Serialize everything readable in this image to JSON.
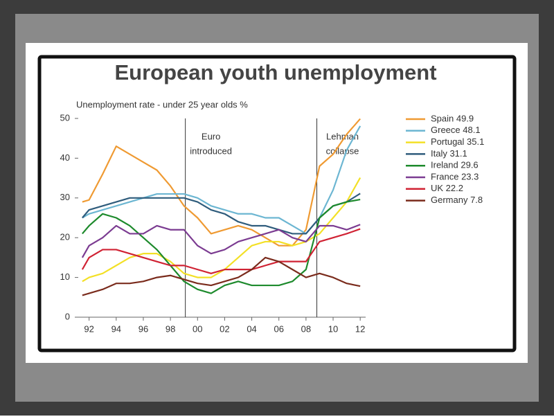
{
  "chart_data": {
    "type": "line",
    "title": "European youth unemployment",
    "subtitle": "Unemployment rate - under 25 year olds %",
    "x": [
      1991.5,
      1992,
      1993,
      1994,
      1995,
      1996,
      1997,
      1998,
      1999,
      2000,
      2001,
      2002,
      2003,
      2004,
      2005,
      2006,
      2007,
      2008,
      2009,
      2010,
      2011,
      2012
    ],
    "series": [
      {
        "name": "Spain 49.9",
        "color": "#ef9a32",
        "values": [
          29,
          29.5,
          36,
          43,
          41,
          39,
          37,
          33,
          28,
          25,
          21,
          22,
          23,
          22,
          20,
          18,
          18,
          22,
          38,
          41,
          46,
          49.9
        ]
      },
      {
        "name": "Greece 48.1",
        "color": "#6cb6d2",
        "values": [
          25,
          26,
          27,
          28,
          29,
          30,
          31,
          31,
          31,
          30,
          28,
          27,
          26,
          26,
          25,
          25,
          23,
          21,
          25,
          32,
          42,
          48.1
        ]
      },
      {
        "name": "Portugal 35.1",
        "color": "#f3e026",
        "values": [
          9,
          10,
          11,
          13,
          15,
          16,
          16,
          14,
          11,
          10,
          10,
          12,
          15,
          18,
          19,
          19,
          18,
          19,
          21,
          25,
          29,
          35.1
        ]
      },
      {
        "name": "Italy 31.1",
        "color": "#2f5c7c",
        "values": [
          25,
          27,
          28,
          29,
          30,
          30,
          30,
          30,
          30,
          29,
          27,
          26,
          24,
          23,
          23,
          22,
          21,
          21,
          25,
          28,
          29,
          31.1
        ]
      },
      {
        "name": "Ireland 29.6",
        "color": "#1d8a2c",
        "values": [
          21,
          23,
          26,
          25,
          23,
          20,
          17,
          13,
          9,
          7,
          6,
          8,
          9,
          8,
          8,
          8,
          9,
          12,
          25,
          28,
          29,
          29.6
        ]
      },
      {
        "name": "France 23.3",
        "color": "#7b3b91",
        "values": [
          15,
          18,
          20,
          23,
          21,
          21,
          23,
          22,
          22,
          18,
          16,
          17,
          19,
          20,
          21,
          22,
          20,
          19,
          23,
          23,
          22,
          23.3
        ]
      },
      {
        "name": "UK 22.2",
        "color": "#d02233",
        "values": [
          12,
          15,
          17,
          17,
          16,
          15,
          14,
          13,
          13,
          12,
          11,
          12,
          12,
          12,
          13,
          14,
          14,
          14,
          19,
          20,
          21,
          22.2
        ]
      },
      {
        "name": "Germany 7.8",
        "color": "#7a2b1c",
        "values": [
          5.5,
          6,
          7,
          8.5,
          8.5,
          9,
          10,
          10.5,
          9.5,
          8.5,
          8,
          9,
          10,
          12,
          15,
          14,
          12,
          10,
          11,
          10,
          8.5,
          7.8
        ]
      }
    ],
    "xlim": [
      1991.2,
      2012.4
    ],
    "ylim": [
      0,
      50
    ],
    "yticks": [
      0,
      10,
      20,
      30,
      40,
      50
    ],
    "xticks": [
      {
        "value": 1992,
        "label": "92"
      },
      {
        "value": 1994,
        "label": "94"
      },
      {
        "value": 1996,
        "label": "96"
      },
      {
        "value": 1998,
        "label": "98"
      },
      {
        "value": 2000,
        "label": "00"
      },
      {
        "value": 2002,
        "label": "02"
      },
      {
        "value": 2004,
        "label": "04"
      },
      {
        "value": 2006,
        "label": "06"
      },
      {
        "value": 2008,
        "label": "08"
      },
      {
        "value": 2010,
        "label": "10"
      },
      {
        "value": 2012,
        "label": "12"
      }
    ],
    "annotations": [
      {
        "x": 1999.1,
        "lines": [
          "Euro",
          "introduced"
        ]
      },
      {
        "x": 2008.8,
        "lines": [
          "Lehman",
          "collapse"
        ]
      }
    ],
    "legend": "right"
  }
}
